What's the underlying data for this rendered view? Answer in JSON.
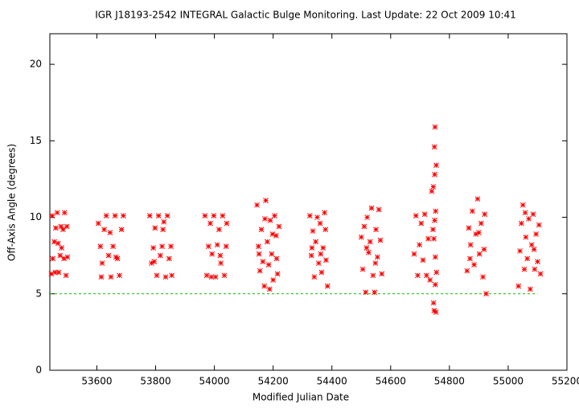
{
  "chart_data": {
    "type": "scatter",
    "title": "IGR J18193-2542   INTEGRAL Galactic Bulge Monitoring.  Last Update: 22 Oct 2009 10:41",
    "xlabel": "Modified Julian Date",
    "ylabel": "Off-Axis Angle (degrees)",
    "color": "#ff0000",
    "xlim": [
      53440,
      55200
    ],
    "ylim": [
      0,
      22
    ],
    "xticks": [
      53600,
      53800,
      54000,
      54200,
      54400,
      54600,
      54800,
      55000,
      55200
    ],
    "yticks": [
      0,
      5,
      10,
      15,
      20
    ],
    "grid": false,
    "reference_line": {
      "y": 5,
      "x": [
        53440,
        55100
      ],
      "color": "#00c000"
    },
    "x": [
      53445,
      53450,
      53455,
      53460,
      53465,
      53470,
      53475,
      53480,
      53485,
      53490,
      53495,
      53500,
      53448,
      53458,
      53468,
      53478,
      53488,
      53498,
      53605,
      53612,
      53618,
      53625,
      53632,
      53640,
      53648,
      53655,
      53662,
      53670,
      53677,
      53684,
      53690,
      53615,
      53645,
      53665,
      53780,
      53786,
      53792,
      53798,
      53804,
      53810,
      53816,
      53822,
      53828,
      53834,
      53840,
      53846,
      53852,
      53855,
      53795,
      53825,
      53968,
      53974,
      53980,
      53986,
      53992,
      53998,
      54004,
      54010,
      54016,
      54022,
      54028,
      54034,
      54040,
      54042,
      53990,
      54020,
      54145,
      54150,
      54155,
      54160,
      54165,
      54170,
      54175,
      54180,
      54185,
      54190,
      54195,
      54200,
      54205,
      54210,
      54215,
      54220,
      54152,
      54172,
      54188,
      54198,
      54212,
      54325,
      54330,
      54335,
      54340,
      54345,
      54350,
      54355,
      54360,
      54365,
      54370,
      54375,
      54380,
      54385,
      54332,
      54362,
      54378,
      54500,
      54505,
      54510,
      54515,
      54520,
      54525,
      54530,
      54535,
      54540,
      54545,
      54550,
      54555,
      54560,
      54565,
      54570,
      54518,
      54548,
      54680,
      54686,
      54692,
      54698,
      54704,
      54710,
      54716,
      54722,
      54728,
      54734,
      54740,
      54744,
      54746,
      54748,
      54749,
      54750,
      54751,
      54752,
      54753,
      54754,
      54755,
      54756,
      54747,
      54745,
      54752,
      54750,
      54860,
      54866,
      54872,
      54878,
      54884,
      54890,
      54896,
      54902,
      54908,
      54914,
      54920,
      54925,
      54870,
      54900,
      54918,
      55035,
      55040,
      55045,
      55050,
      55055,
      55060,
      55065,
      55070,
      55075,
      55080,
      55085,
      55090,
      55095,
      55100,
      55105,
      55110,
      55058,
      55088
    ],
    "values": [
      6.3,
      7.3,
      8.4,
      9.3,
      10.3,
      6.4,
      7.5,
      8.0,
      9.2,
      10.3,
      6.2,
      7.4,
      10.1,
      6.4,
      8.3,
      9.4,
      7.3,
      9.4,
      9.6,
      8.1,
      7.0,
      9.2,
      10.1,
      7.5,
      6.1,
      8.1,
      10.1,
      7.3,
      6.2,
      9.2,
      10.1,
      6.1,
      9.0,
      7.4,
      10.1,
      7.0,
      8.0,
      9.3,
      6.2,
      10.1,
      7.5,
      8.1,
      9.7,
      6.1,
      10.1,
      7.3,
      8.1,
      6.2,
      7.1,
      9.2,
      10.1,
      6.2,
      8.1,
      9.6,
      7.6,
      10.1,
      6.1,
      8.2,
      9.2,
      7.0,
      10.1,
      6.2,
      8.1,
      9.6,
      6.1,
      7.5,
      10.8,
      8.1,
      6.5,
      9.2,
      7.1,
      5.5,
      11.1,
      8.4,
      6.9,
      9.8,
      7.6,
      5.9,
      10.1,
      8.8,
      6.3,
      9.4,
      7.6,
      9.9,
      5.3,
      8.9,
      7.3,
      10.1,
      7.5,
      9.1,
      6.1,
      8.4,
      10.0,
      7.0,
      9.6,
      6.4,
      8.0,
      10.3,
      7.2,
      5.5,
      8.0,
      7.6,
      9.2,
      8.7,
      6.6,
      9.4,
      5.1,
      10.0,
      7.7,
      8.4,
      10.6,
      6.2,
      5.1,
      9.2,
      7.4,
      10.5,
      8.5,
      6.3,
      8.0,
      7.0,
      7.6,
      10.1,
      6.2,
      8.2,
      9.6,
      7.2,
      10.2,
      6.2,
      8.6,
      5.9,
      11.7,
      9.2,
      4.4,
      3.9,
      14.6,
      12.8,
      15.9,
      7.4,
      10.4,
      3.8,
      13.4,
      6.4,
      8.6,
      12.0,
      5.6,
      9.8,
      6.5,
      9.3,
      8.2,
      10.4,
      6.9,
      8.9,
      11.2,
      7.6,
      9.6,
      6.1,
      10.2,
      5.0,
      7.3,
      9.0,
      7.9,
      5.5,
      7.8,
      9.6,
      10.8,
      6.6,
      8.7,
      7.3,
      9.9,
      5.3,
      8.2,
      10.2,
      6.6,
      8.9,
      7.1,
      9.5,
      6.3,
      10.3,
      7.9
    ]
  }
}
